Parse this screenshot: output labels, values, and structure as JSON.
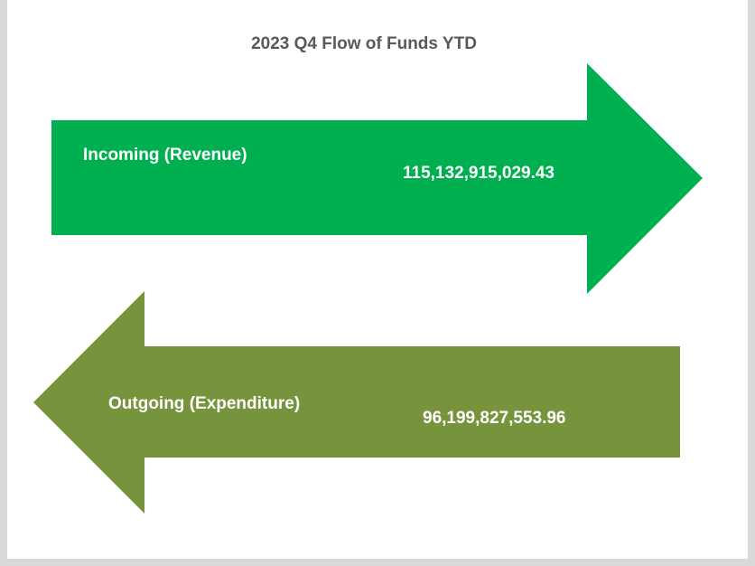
{
  "title": "2023 Q4 Flow of Funds YTD",
  "flows": [
    {
      "label": "Incoming (Revenue)",
      "amount": "115,132,915,029.43"
    },
    {
      "label": "Outgoing (Expenditure)",
      "amount": "96,199,827,553.96"
    }
  ]
}
